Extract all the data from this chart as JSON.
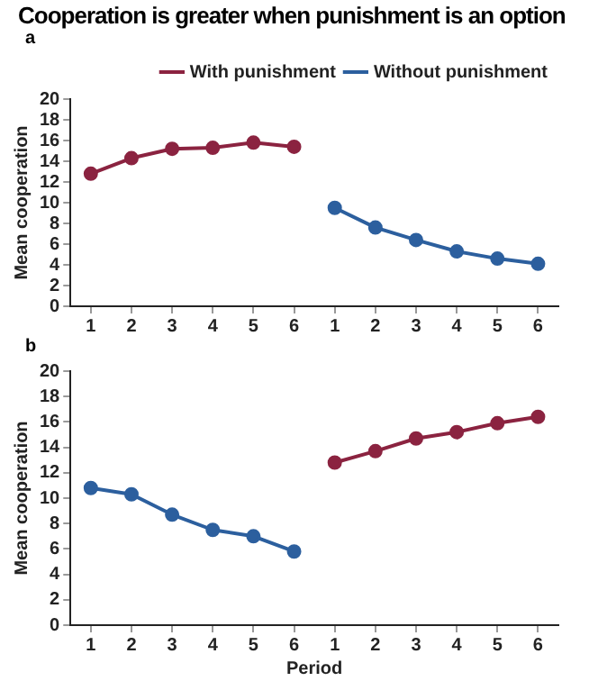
{
  "chart_data": [
    {
      "type": "line",
      "title": "Cooperation is greater when punishment is an option",
      "subtitle": "a",
      "ylabel": "Mean cooperation",
      "categories": [
        "1",
        "2",
        "3",
        "4",
        "5",
        "6",
        "1",
        "2",
        "3",
        "4",
        "5",
        "6"
      ],
      "ylim": [
        0,
        20
      ],
      "yticks": [
        0,
        2,
        4,
        6,
        8,
        10,
        12,
        14,
        16,
        18,
        20
      ],
      "grid": false,
      "legend": "top",
      "marker": "circle",
      "line_style": "solid",
      "series": [
        {
          "name": "With punishment",
          "color": "#8b2340",
          "values": [
            12.8,
            14.3,
            15.2,
            15.3,
            15.8,
            15.4,
            null,
            null,
            null,
            null,
            null,
            null
          ]
        },
        {
          "name": "Without punishment",
          "color": "#2c5f9e",
          "values": [
            null,
            null,
            null,
            null,
            null,
            null,
            9.5,
            7.6,
            6.4,
            5.3,
            4.6,
            4.1
          ]
        }
      ]
    },
    {
      "type": "line",
      "title": "b",
      "xlabel": "Period",
      "ylabel": "Mean cooperation",
      "categories": [
        "1",
        "2",
        "3",
        "4",
        "5",
        "6",
        "1",
        "2",
        "3",
        "4",
        "5",
        "6"
      ],
      "ylim": [
        0,
        20
      ],
      "yticks": [
        0,
        2,
        4,
        6,
        8,
        10,
        12,
        14,
        16,
        18,
        20
      ],
      "grid": false,
      "legend": false,
      "marker": "circle",
      "line_style": "solid",
      "series": [
        {
          "color": "#2c5f9e",
          "values": [
            10.8,
            10.3,
            8.7,
            7.5,
            7.0,
            5.8,
            null,
            null,
            null,
            null,
            null,
            null
          ]
        },
        {
          "color": "#8b2340",
          "values": [
            null,
            null,
            null,
            null,
            null,
            null,
            12.8,
            13.7,
            14.7,
            15.2,
            15.9,
            16.4
          ]
        }
      ]
    }
  ]
}
